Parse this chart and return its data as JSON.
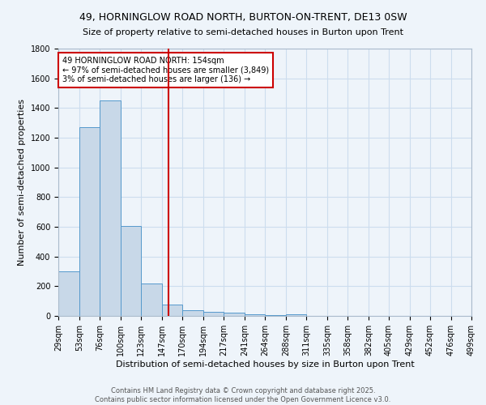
{
  "title": "49, HORNINGLOW ROAD NORTH, BURTON-ON-TRENT, DE13 0SW",
  "subtitle": "Size of property relative to semi-detached houses in Burton upon Trent",
  "xlabel": "Distribution of semi-detached houses by size in Burton upon Trent",
  "ylabel": "Number of semi-detached properties",
  "bin_edges": [
    29,
    53,
    76,
    100,
    123,
    147,
    170,
    194,
    217,
    241,
    264,
    288,
    311,
    335,
    358,
    382,
    405,
    429,
    452,
    476,
    499
  ],
  "bar_heights": [
    300,
    1270,
    1450,
    605,
    220,
    75,
    40,
    30,
    20,
    10,
    5,
    10,
    0,
    0,
    0,
    0,
    0,
    0,
    0,
    0
  ],
  "bar_color": "#c8d8e8",
  "bar_edge_color": "#5599cc",
  "grid_color": "#ccddee",
  "background_color": "#eef4fa",
  "vline_x": 154,
  "vline_color": "#cc0000",
  "annotation_title": "49 HORNINGLOW ROAD NORTH: 154sqm",
  "annotation_line1": "← 97% of semi-detached houses are smaller (3,849)",
  "annotation_line2": "3% of semi-detached houses are larger (136) →",
  "annotation_box_color": "#cc0000",
  "ylim": [
    0,
    1800
  ],
  "yticks": [
    0,
    200,
    400,
    600,
    800,
    1000,
    1200,
    1400,
    1600,
    1800
  ],
  "tick_labels": [
    "29sqm",
    "53sqm",
    "76sqm",
    "100sqm",
    "123sqm",
    "147sqm",
    "170sqm",
    "194sqm",
    "217sqm",
    "241sqm",
    "264sqm",
    "288sqm",
    "311sqm",
    "335sqm",
    "358sqm",
    "382sqm",
    "405sqm",
    "429sqm",
    "452sqm",
    "476sqm",
    "499sqm"
  ],
  "footer_line1": "Contains HM Land Registry data © Crown copyright and database right 2025.",
  "footer_line2": "Contains public sector information licensed under the Open Government Licence v3.0.",
  "title_fontsize": 9,
  "subtitle_fontsize": 8,
  "ylabel_fontsize": 8,
  "xlabel_fontsize": 8,
  "tick_fontsize": 7,
  "footer_fontsize": 6,
  "annotation_fontsize": 7
}
